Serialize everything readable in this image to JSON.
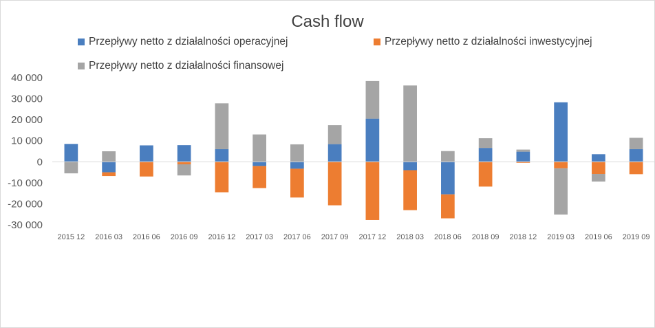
{
  "chart_data": {
    "type": "bar",
    "stacked": true,
    "title": "Cash flow",
    "categories": [
      "2015 12",
      "2016 03",
      "2016 06",
      "2016 09",
      "2016 12",
      "2017 03",
      "2017 06",
      "2017 09",
      "2017 12",
      "2018 03",
      "2018 06",
      "2018 09",
      "2018 12",
      "2019 03",
      "2019 06",
      "2019 09"
    ],
    "series": [
      {
        "name": "Przepływy netto z działalności operacyjnej",
        "color": "#4a7ebf",
        "values": [
          8500,
          -5000,
          7800,
          7900,
          6000,
          -2000,
          -3300,
          8400,
          20500,
          -4000,
          -15500,
          6600,
          4800,
          28300,
          3600,
          6000
        ]
      },
      {
        "name": "Przepływy netto z działalności inwestycyjnej",
        "color": "#ed7d31",
        "values": [
          0,
          -1800,
          -7000,
          -1200,
          -14500,
          -10500,
          -13700,
          -20700,
          -27700,
          -19000,
          -11400,
          -11800,
          -500,
          -3100,
          -5800,
          -5900
        ]
      },
      {
        "name": "Przepływy netto z działalności finansowej",
        "color": "#a5a5a5",
        "values": [
          -5500,
          5000,
          0,
          -5300,
          21800,
          13000,
          8300,
          9000,
          17900,
          36300,
          5100,
          4600,
          1000,
          -22000,
          -3600,
          5400
        ]
      }
    ],
    "yticks": [
      "40 000",
      "30 000",
      "20 000",
      "10 000",
      "0",
      "-10 000",
      "-20 000",
      "-30 000"
    ],
    "ylim": [
      -30000,
      40000
    ],
    "legend": "top",
    "grid": false
  }
}
